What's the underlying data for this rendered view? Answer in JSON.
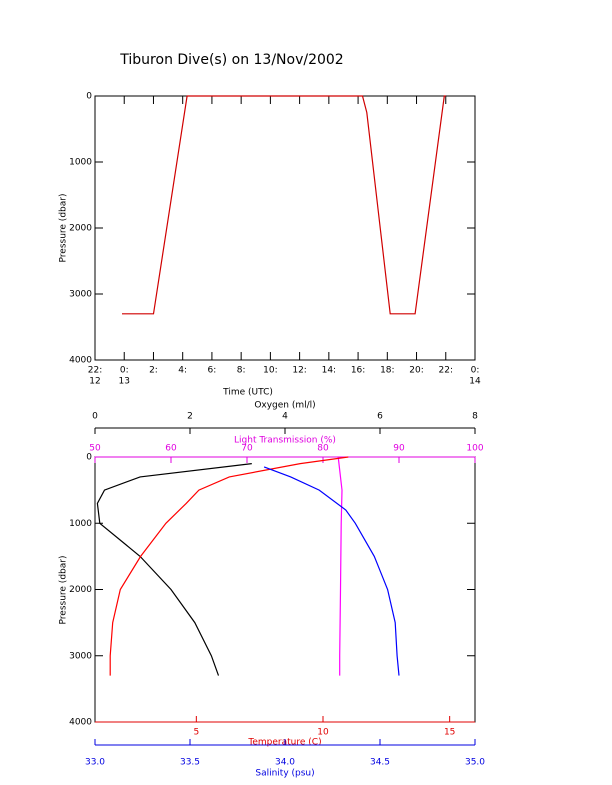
{
  "chart_data": [
    {
      "type": "line",
      "title": "Tiburon Dive(s) on 13/Nov/2002",
      "x_label": "Time (UTC)",
      "y_label": "Pressure (dbar)",
      "xlim": [
        -2,
        24
      ],
      "xticks": [
        {
          "value": -2,
          "label": "22:",
          "sublabel": "12"
        },
        {
          "value": 0,
          "label": "0:",
          "sublabel": "13"
        },
        {
          "value": 2,
          "label": "2:"
        },
        {
          "value": 4,
          "label": "4:"
        },
        {
          "value": 6,
          "label": "6:"
        },
        {
          "value": 8,
          "label": "8:"
        },
        {
          "value": 10,
          "label": "10:"
        },
        {
          "value": 12,
          "label": "12:"
        },
        {
          "value": 14,
          "label": "14:"
        },
        {
          "value": 16,
          "label": "16:"
        },
        {
          "value": 18,
          "label": "18:"
        },
        {
          "value": 20,
          "label": "20:"
        },
        {
          "value": 22,
          "label": "22:"
        },
        {
          "value": 24,
          "label": "0:",
          "sublabel": "14"
        }
      ],
      "ylim": [
        0,
        4000
      ],
      "y_reversed": true,
      "yticks": [
        0,
        1000,
        2000,
        3000,
        4000
      ],
      "series": [
        {
          "color": "#d00000",
          "x": [
            -0.15,
            2.0,
            4.3,
            16.3,
            16.6,
            18.2,
            19.9,
            21.9,
            22.0
          ],
          "values": [
            3300,
            3300,
            0,
            0,
            250,
            3300,
            3300,
            0,
            0
          ]
        }
      ]
    },
    {
      "type": "line",
      "y_label": "Pressure (dbar)",
      "ylim": [
        0,
        4000
      ],
      "y_reversed": true,
      "yticks": [
        0,
        1000,
        2000,
        3000,
        4000
      ],
      "x_axes": [
        {
          "label": "Oxygen (ml/l)",
          "color": "#000000",
          "lim": [
            0,
            8
          ],
          "ticks": [
            0,
            2,
            4,
            6,
            8
          ]
        },
        {
          "label": "Light Transmission (%)",
          "color": "#e000e0",
          "lim": [
            50,
            100
          ],
          "ticks": [
            50,
            60,
            70,
            80,
            90,
            100
          ]
        },
        {
          "label": "Temperature (C)",
          "color": "#e00000",
          "lim": [
            1,
            16
          ],
          "ticks": [
            5,
            10,
            15
          ]
        },
        {
          "label": "Salinity (psu)",
          "color": "#0000e0",
          "lim": [
            33,
            35
          ],
          "ticks": [
            {
              "value": 33,
              "label": "33.0"
            },
            33.5,
            {
              "value": 34,
              "label": "34.0"
            },
            34.5,
            {
              "value": 35,
              "label": "35.0"
            }
          ]
        }
      ],
      "series": [
        {
          "x_axis": 0,
          "color": "#000000",
          "x": [
            3.3,
            0.95,
            0.2,
            0.05,
            0.1,
            0.95,
            1.6,
            2.1,
            2.45,
            2.6
          ],
          "values": [
            100,
            300,
            500,
            700,
            1000,
            1500,
            2000,
            2500,
            3000,
            3300
          ]
        },
        {
          "x_axis": 1,
          "color": "#ff00ff",
          "x": [
            82.0,
            82.5,
            82.4,
            82.3,
            82.2,
            82.2
          ],
          "values": [
            0,
            500,
            1000,
            2000,
            3000,
            3300
          ]
        },
        {
          "x_axis": 2,
          "color": "#ff0000",
          "x": [
            11.0,
            9.1,
            6.3,
            5.1,
            4.6,
            3.8,
            2.8,
            2.0,
            1.7,
            1.6,
            1.6
          ],
          "values": [
            0,
            100,
            300,
            500,
            700,
            1000,
            1500,
            2000,
            2500,
            3000,
            3300
          ]
        },
        {
          "x_axis": 3,
          "color": "#0000ff",
          "x": [
            33.89,
            34.03,
            34.18,
            34.32,
            34.37,
            34.47,
            34.54,
            34.58,
            34.59,
            34.6
          ],
          "values": [
            150,
            300,
            500,
            800,
            1000,
            1500,
            2000,
            2500,
            3000,
            3300
          ]
        }
      ]
    }
  ]
}
